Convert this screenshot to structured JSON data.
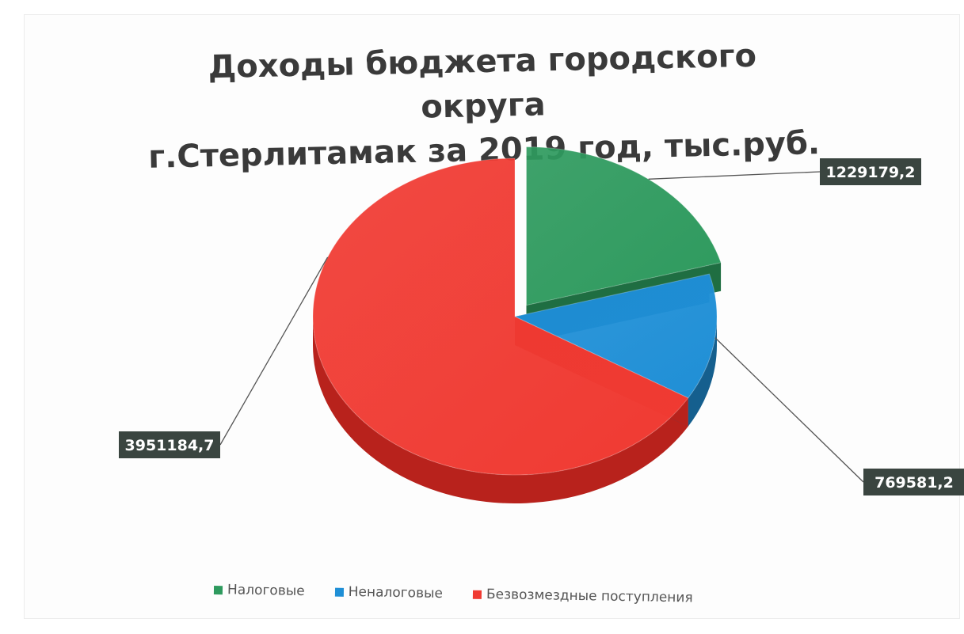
{
  "chart_data": {
    "type": "pie",
    "title_lines": [
      "Доходы бюджета городского округа",
      "г.Стерлитамак за 2019 год, тыс.руб."
    ],
    "categories": [
      "Налоговые",
      "Неналоговые",
      "Безвозмездные поступления"
    ],
    "values": [
      1229179.2,
      769581.2,
      3951184.7
    ],
    "value_labels": [
      "1229179,2",
      "769581,2",
      "3951184,7"
    ],
    "colors": [
      "#2e9a5e",
      "#1f8fd6",
      "#f03a32"
    ],
    "side_colors": [
      "#1f6e42",
      "#155f8e",
      "#b8221c"
    ],
    "label_background": "#3a4540",
    "legend_placement": "bottom",
    "exploded_category": "Налоговые",
    "style": "3d"
  }
}
